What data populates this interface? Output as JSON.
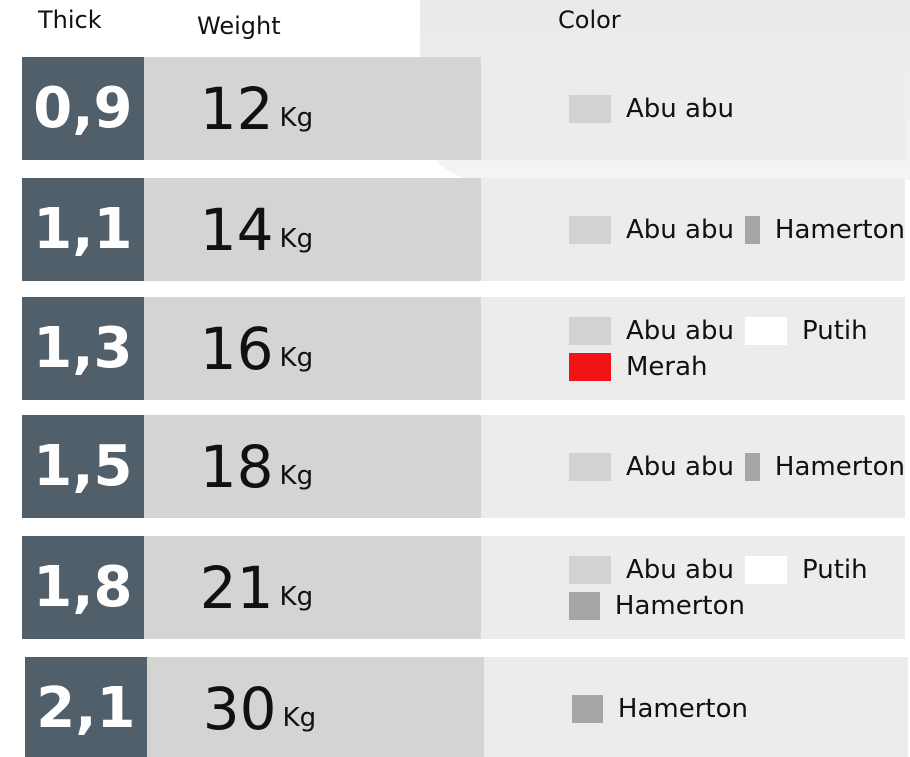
{
  "header": {
    "thick": "Thick",
    "weight": "Weight",
    "color": "Color"
  },
  "rows": [
    {
      "thick": "0,9",
      "weight": 12,
      "unit": "Kg",
      "colors": [
        {
          "name": "Abu abu",
          "swatch": "#d2d2d2"
        }
      ]
    },
    {
      "thick": "1,1",
      "weight": 14,
      "unit": "Kg",
      "colors": [
        {
          "name": "Abu abu",
          "swatch": "#d2d2d2"
        },
        {
          "name": "Hamerton",
          "swatch": "#a6a6a6"
        }
      ]
    },
    {
      "thick": "1,3",
      "weight": 16,
      "unit": "Kg",
      "colors": [
        {
          "name": "Abu abu",
          "swatch": "#d2d2d2"
        },
        {
          "name": "Putih",
          "swatch": "#ffffff"
        },
        {
          "name": "Merah",
          "swatch": "#f01414"
        }
      ]
    },
    {
      "thick": "1,5",
      "weight": 18,
      "unit": "Kg",
      "colors": [
        {
          "name": "Abu abu",
          "swatch": "#d2d2d2"
        },
        {
          "name": "Hamerton",
          "swatch": "#a6a6a6"
        }
      ]
    },
    {
      "thick": "1,8",
      "weight": 21,
      "unit": "Kg",
      "colors": [
        {
          "name": "Abu abu",
          "swatch": "#d2d2d2"
        },
        {
          "name": "Putih",
          "swatch": "#ffffff"
        },
        {
          "name": "Hamerton",
          "swatch": "#a6a6a6"
        }
      ]
    },
    {
      "thick": "2,1",
      "weight": 30,
      "unit": "Kg",
      "colors": [
        {
          "name": "Hamerton",
          "swatch": "#a6a6a6"
        }
      ]
    }
  ]
}
